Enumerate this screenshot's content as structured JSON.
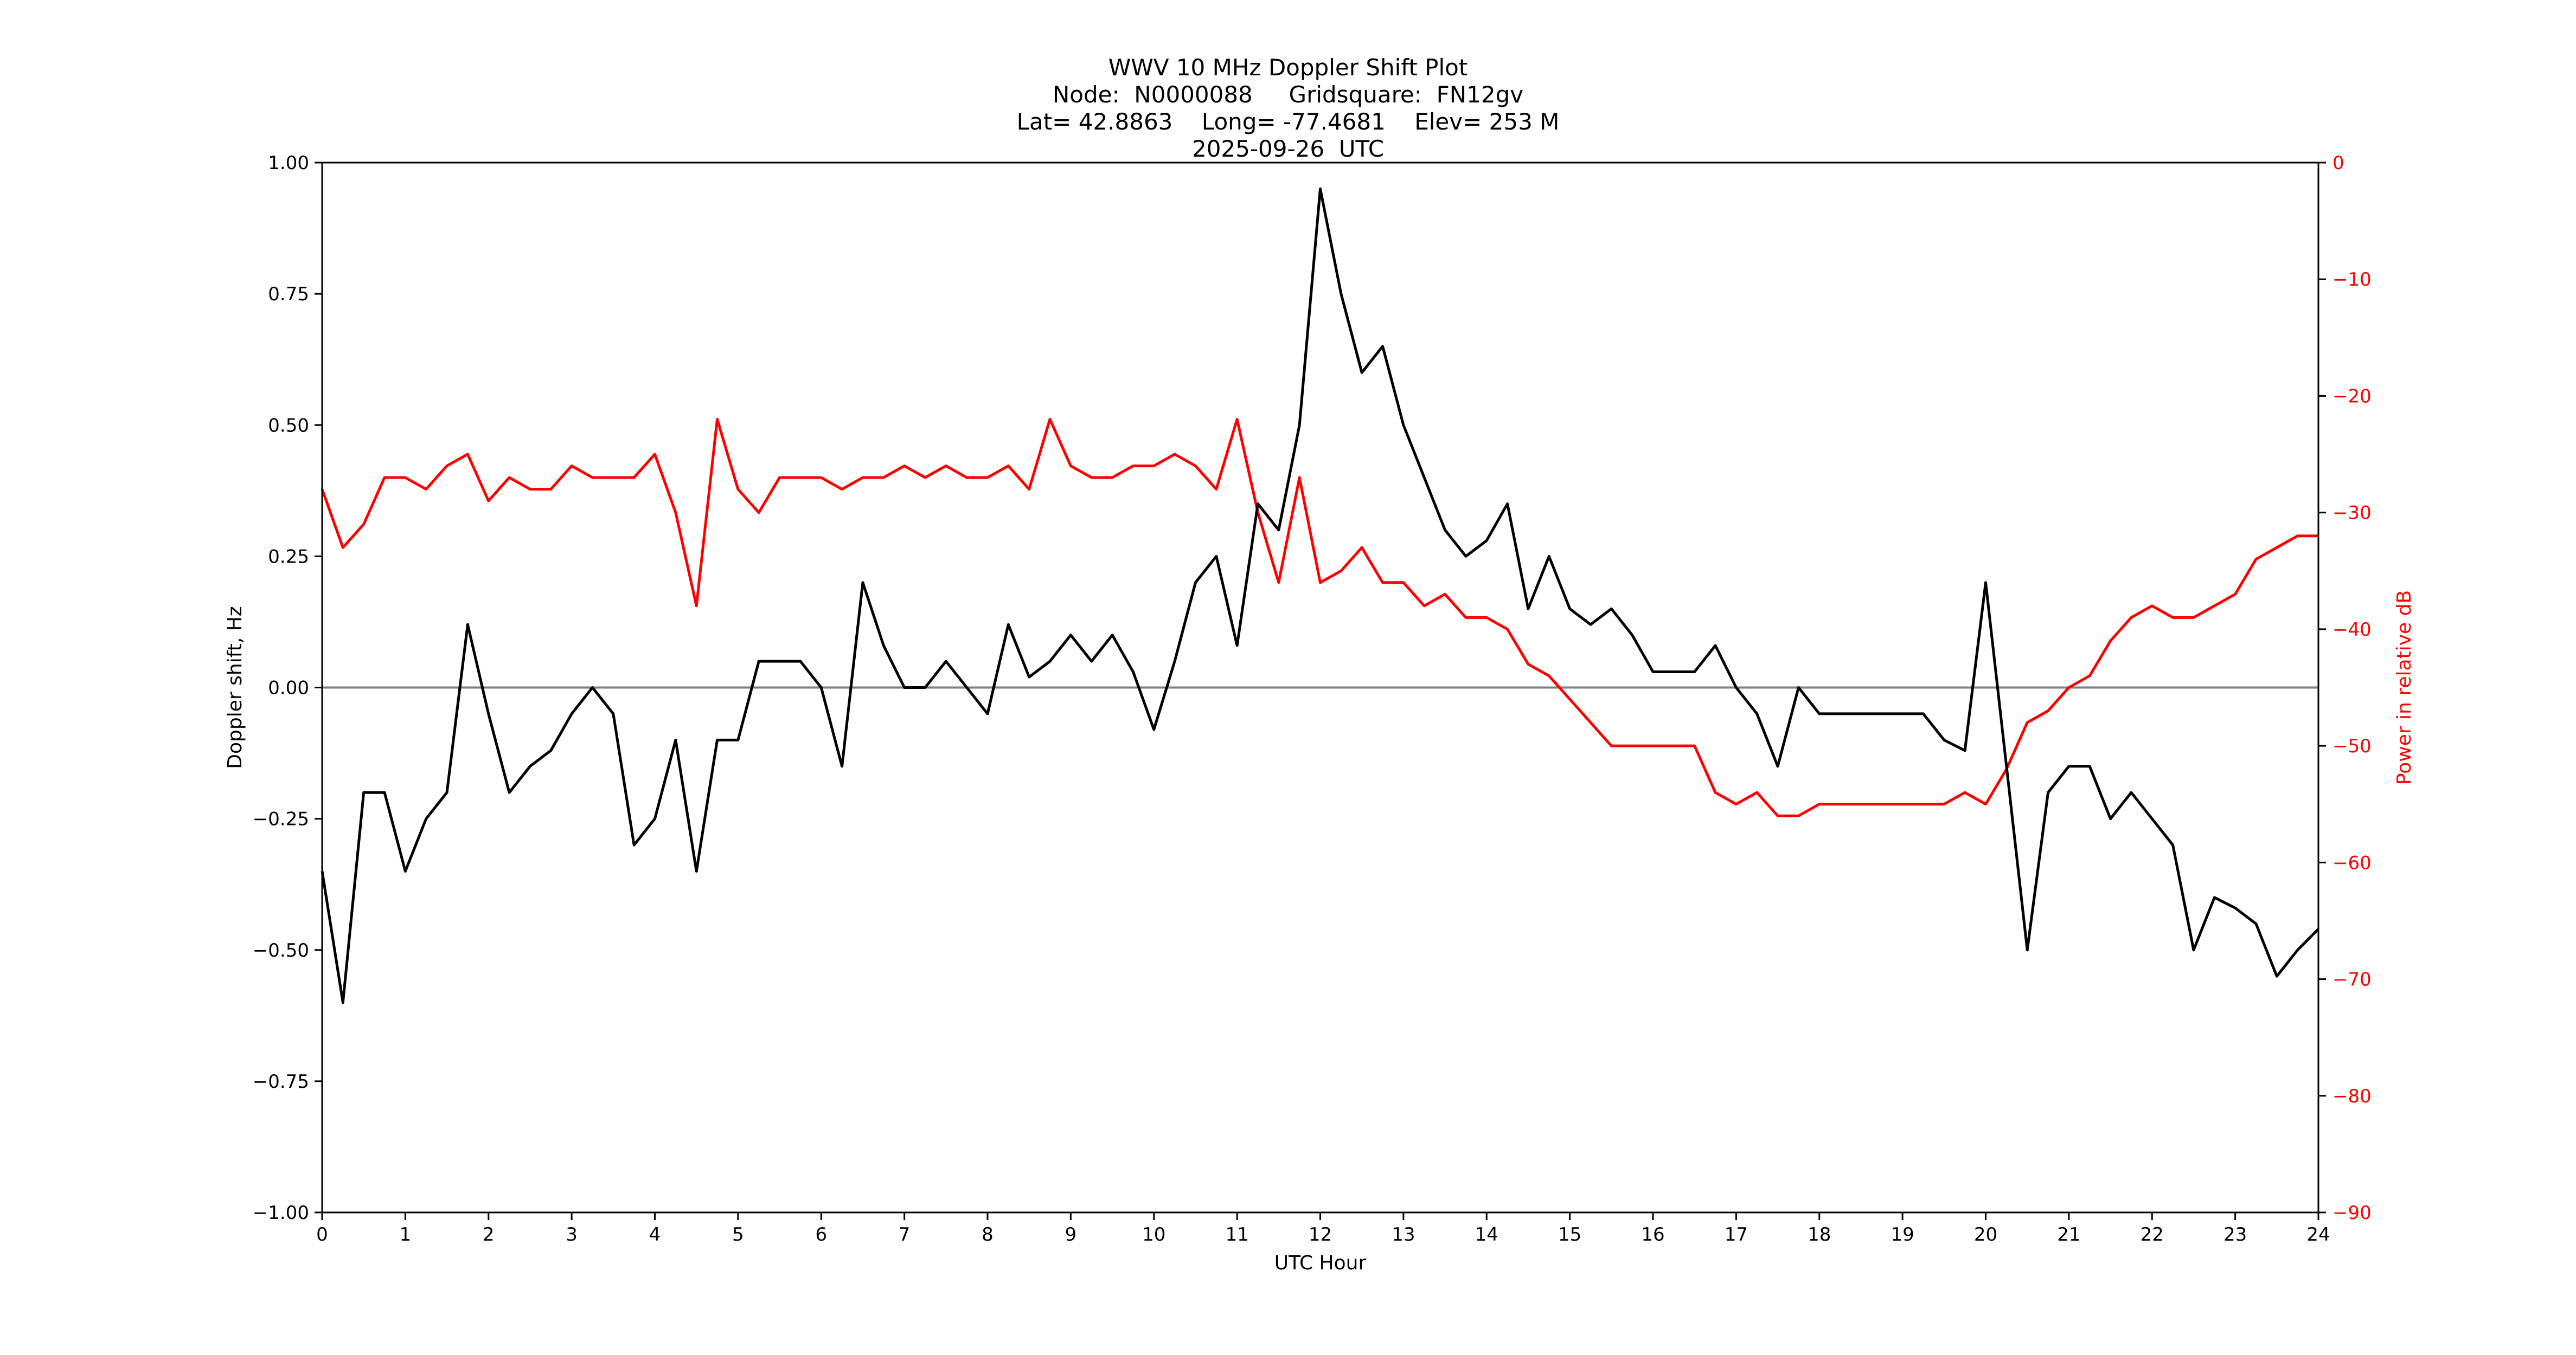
{
  "title": {
    "line1": "WWV 10 MHz Doppler Shift Plot",
    "line2": "Node:  N0000088     Gridsquare:  FN12gv",
    "line3": "Lat= 42.8863    Long= -77.4681    Elev= 253 M",
    "line4": "2025-09-26  UTC"
  },
  "colors": {
    "doppler": "#000000",
    "power": "#ff0000",
    "zero_line": "#808080"
  },
  "chart_data": {
    "type": "line",
    "title": "WWV 10 MHz Doppler Shift Plot",
    "subtitle": [
      "Node:  N0000088     Gridsquare:  FN12gv",
      "Lat= 42.8863    Long= -77.4681    Elev= 253 M",
      "2025-09-26  UTC"
    ],
    "xlabel": "UTC Hour",
    "ylabel": "Doppler shift, Hz",
    "y2label": "Power in relative dB",
    "xlim": [
      0,
      24
    ],
    "ylim": [
      -1.0,
      1.0
    ],
    "y2lim": [
      -90,
      0
    ],
    "xticks": [
      "0",
      "1",
      "2",
      "3",
      "4",
      "5",
      "6",
      "7",
      "8",
      "9",
      "10",
      "11",
      "12",
      "13",
      "14",
      "15",
      "16",
      "17",
      "18",
      "19",
      "20",
      "21",
      "22",
      "23",
      "24"
    ],
    "yticks": [
      "1.00",
      "0.75",
      "0.50",
      "0.25",
      "0.00",
      "−0.25",
      "−0.50",
      "−0.75",
      "−1.00"
    ],
    "y2ticks": [
      "0",
      "−10",
      "−20",
      "−30",
      "−40",
      "−50",
      "−60",
      "−70",
      "−80",
      "−90"
    ],
    "grid": false,
    "hline": 0.0,
    "x": [
      0,
      0.25,
      0.5,
      0.75,
      1,
      1.25,
      1.5,
      1.75,
      2,
      2.25,
      2.5,
      2.75,
      3,
      3.25,
      3.5,
      3.75,
      4,
      4.25,
      4.5,
      4.75,
      5,
      5.25,
      5.5,
      5.75,
      6,
      6.25,
      6.5,
      6.75,
      7,
      7.25,
      7.5,
      7.75,
      8,
      8.25,
      8.5,
      8.75,
      9,
      9.25,
      9.5,
      9.75,
      10,
      10.25,
      10.5,
      10.75,
      11,
      11.25,
      11.5,
      11.75,
      12,
      12.25,
      12.5,
      12.75,
      13,
      13.25,
      13.5,
      13.75,
      14,
      14.25,
      14.5,
      14.75,
      15,
      15.25,
      15.5,
      15.75,
      16,
      16.25,
      16.5,
      16.75,
      17,
      17.25,
      17.5,
      17.75,
      18,
      18.25,
      18.5,
      18.75,
      19,
      19.25,
      19.5,
      19.75,
      20,
      20.25,
      20.5,
      20.75,
      21,
      21.25,
      21.5,
      21.75,
      22,
      22.25,
      22.5,
      22.75,
      23,
      23.25,
      23.5,
      23.75,
      24
    ],
    "series": [
      {
        "name": "Doppler shift, Hz",
        "axis": "left",
        "color": "#000000",
        "values": [
          -0.35,
          -0.6,
          -0.2,
          -0.2,
          -0.35,
          -0.25,
          -0.2,
          0.12,
          -0.05,
          -0.2,
          -0.15,
          -0.12,
          -0.05,
          0.0,
          -0.05,
          -0.3,
          -0.25,
          -0.1,
          -0.35,
          -0.1,
          -0.1,
          0.05,
          0.05,
          0.05,
          0.0,
          -0.15,
          0.2,
          0.08,
          0.0,
          0.0,
          0.05,
          0.0,
          -0.05,
          0.12,
          0.02,
          0.05,
          0.1,
          0.05,
          0.1,
          0.03,
          -0.08,
          0.05,
          0.2,
          0.25,
          0.08,
          0.35,
          0.3,
          0.5,
          0.95,
          0.75,
          0.6,
          0.65,
          0.5,
          0.4,
          0.3,
          0.25,
          0.28,
          0.35,
          0.15,
          0.25,
          0.15,
          0.12,
          0.15,
          0.1,
          0.03,
          0.03,
          0.03,
          0.08,
          0.0,
          -0.05,
          -0.15,
          0.0,
          -0.05,
          -0.05,
          -0.05,
          -0.05,
          -0.05,
          -0.05,
          -0.1,
          -0.12,
          0.2,
          -0.15,
          -0.5,
          -0.2,
          -0.15,
          -0.15,
          -0.25,
          -0.2,
          -0.25,
          -0.3,
          -0.5,
          -0.4,
          -0.42,
          -0.45,
          -0.55,
          -0.5,
          -0.46
        ]
      },
      {
        "name": "Power in relative dB",
        "axis": "right",
        "color": "#ff0000",
        "values": [
          -28,
          -33,
          -31,
          -27,
          -27,
          -28,
          -26,
          -25,
          -29,
          -27,
          -28,
          -28,
          -26,
          -27,
          -27,
          -27,
          -25,
          -30,
          -38,
          -22,
          -28,
          -30,
          -27,
          -27,
          -27,
          -28,
          -27,
          -27,
          -26,
          -27,
          -26,
          -27,
          -27,
          -26,
          -28,
          -22,
          -26,
          -27,
          -27,
          -26,
          -26,
          -25,
          -26,
          -28,
          -22,
          -30,
          -36,
          -27,
          -36,
          -35,
          -33,
          -36,
          -36,
          -38,
          -37,
          -39,
          -39,
          -40,
          -43,
          -44,
          -46,
          -48,
          -50,
          -50,
          -50,
          -50,
          -50,
          -54,
          -55,
          -54,
          -56,
          -56,
          -55,
          -55,
          -55,
          -55,
          -55,
          -55,
          -55,
          -54,
          -55,
          -52,
          -48,
          -47,
          -45,
          -44,
          -41,
          -39,
          -38,
          -39,
          -39,
          -38,
          -37,
          -34,
          -33,
          -32,
          -32
        ]
      }
    ]
  }
}
